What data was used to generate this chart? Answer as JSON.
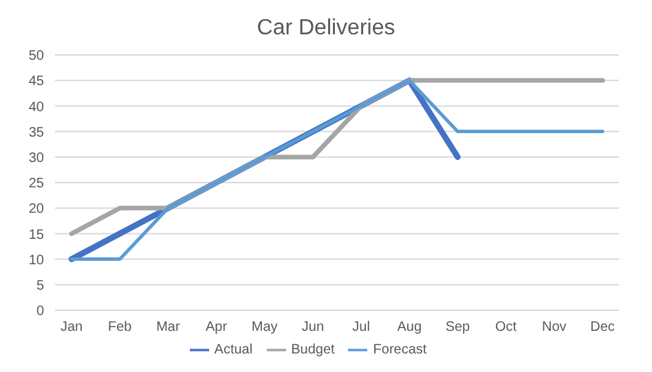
{
  "chart_data": {
    "type": "line",
    "title": "Car Deliveries",
    "categories": [
      "Jan",
      "Feb",
      "Mar",
      "Apr",
      "May",
      "Jun",
      "Jul",
      "Aug",
      "Sep",
      "Oct",
      "Nov",
      "Dec"
    ],
    "series": [
      {
        "name": "Actual",
        "color": "#4472c4",
        "values": [
          10,
          15,
          20,
          25,
          30,
          35,
          40,
          45,
          30,
          null,
          null,
          null
        ]
      },
      {
        "name": "Budget",
        "color": "#a5a5a5",
        "values": [
          15,
          20,
          20,
          25,
          30,
          30,
          40,
          45,
          45,
          45,
          45,
          45
        ]
      },
      {
        "name": "Forecast",
        "color": "#5b9bd5",
        "values": [
          10,
          10,
          20,
          25,
          30,
          35,
          40,
          45,
          35,
          35,
          35,
          35
        ]
      }
    ],
    "ylim": [
      0,
      50
    ],
    "yticks": [
      0,
      5,
      10,
      15,
      20,
      25,
      30,
      35,
      40,
      45,
      50
    ],
    "grid": "y",
    "legend": "bottom",
    "marker": "none",
    "line_style": "solid"
  }
}
